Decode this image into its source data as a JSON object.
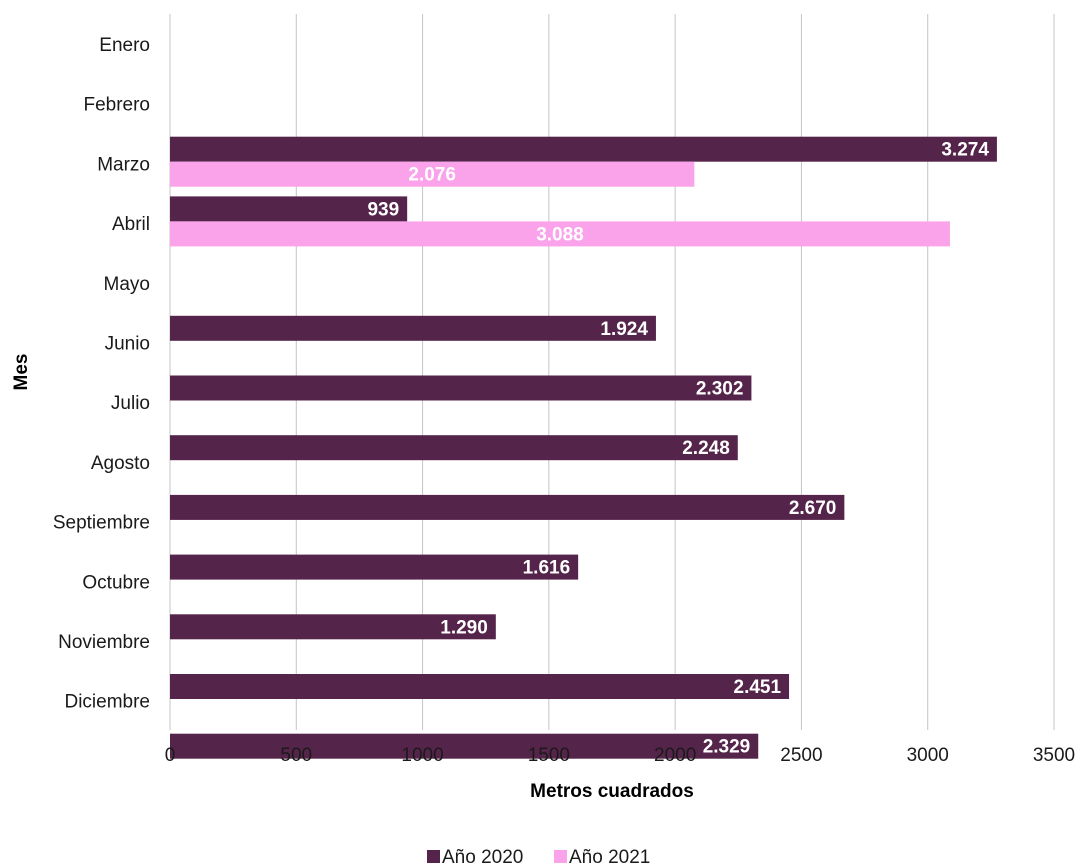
{
  "chart_data": {
    "type": "bar",
    "orientation": "horizontal",
    "categories": [
      "Enero",
      "Febrero",
      "Marzo",
      "Abril",
      "Mayo",
      "Junio",
      "Julio",
      "Agosto",
      "Septiembre",
      "Octubre",
      "Noviembre",
      "Diciembre"
    ],
    "series": [
      {
        "name": "Año 2020",
        "color": "#55244a",
        "values": [
          null,
          3274,
          939,
          null,
          1924,
          2302,
          2248,
          2670,
          1616,
          1290,
          2451,
          2329
        ],
        "labels": [
          "",
          "3.274",
          "939",
          "",
          "1.924",
          "2.302",
          "2.248",
          "2.670",
          "1.616",
          "1.290",
          "2.451",
          "2.329"
        ]
      },
      {
        "name": "Año 2021",
        "color": "#fba3ea",
        "values": [
          null,
          2076,
          3088,
          null,
          null,
          null,
          null,
          null,
          null,
          null,
          null,
          null
        ],
        "labels": [
          "",
          "2.076",
          "3.088",
          "",
          "",
          "",
          "",
          "",
          "",
          "",
          "",
          ""
        ]
      }
    ],
    "xlabel": "Metros cuadrados",
    "ylabel": "Mes",
    "xlim": [
      0,
      3500
    ],
    "xticks": [
      0,
      500,
      1000,
      1500,
      2000,
      2500,
      3000,
      3500
    ],
    "grid": true,
    "legend_position": "bottom"
  }
}
